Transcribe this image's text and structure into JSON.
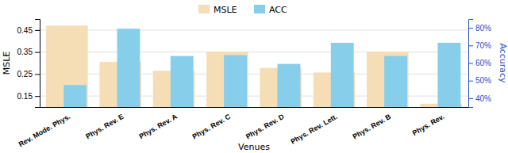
{
  "chart_data": {
    "type": "bar",
    "categories": [
      "Rev. Mode. Phys.",
      "Phys. Rev. E",
      "Phys. Rev. A",
      "Phys. Rev. C",
      "Phys. Rev. D",
      "Phys. Rev. Lett.",
      "Phys. Rev. B",
      "Phys. Rev."
    ],
    "series": [
      {
        "name": "MSLE",
        "color": "#f5ddb5",
        "values": [
          0.47,
          0.305,
          0.265,
          0.352,
          0.278,
          0.257,
          0.352,
          0.115
        ]
      },
      {
        "name": "ACC",
        "color": "#87ceeb",
        "axis": "y2",
        "values": [
          0.475,
          0.795,
          0.64,
          0.645,
          0.595,
          0.715,
          0.64,
          0.715
        ]
      }
    ],
    "xlabel": "Venues",
    "ylabel": "MSLE",
    "y2label": "Accuracy",
    "ylim": [
      0.1,
      0.5
    ],
    "yticks": [
      0.15,
      0.25,
      0.35,
      0.45
    ],
    "y2lim": [
      0.35,
      0.85
    ],
    "y2ticks": [
      {
        "value": 0.4,
        "label": "40%"
      },
      {
        "value": 0.5,
        "label": "50%"
      },
      {
        "value": 0.6,
        "label": "60%"
      },
      {
        "value": 0.7,
        "label": "70%"
      },
      {
        "value": 0.8,
        "label": "80%"
      }
    ],
    "grid": true,
    "legend": "top"
  }
}
